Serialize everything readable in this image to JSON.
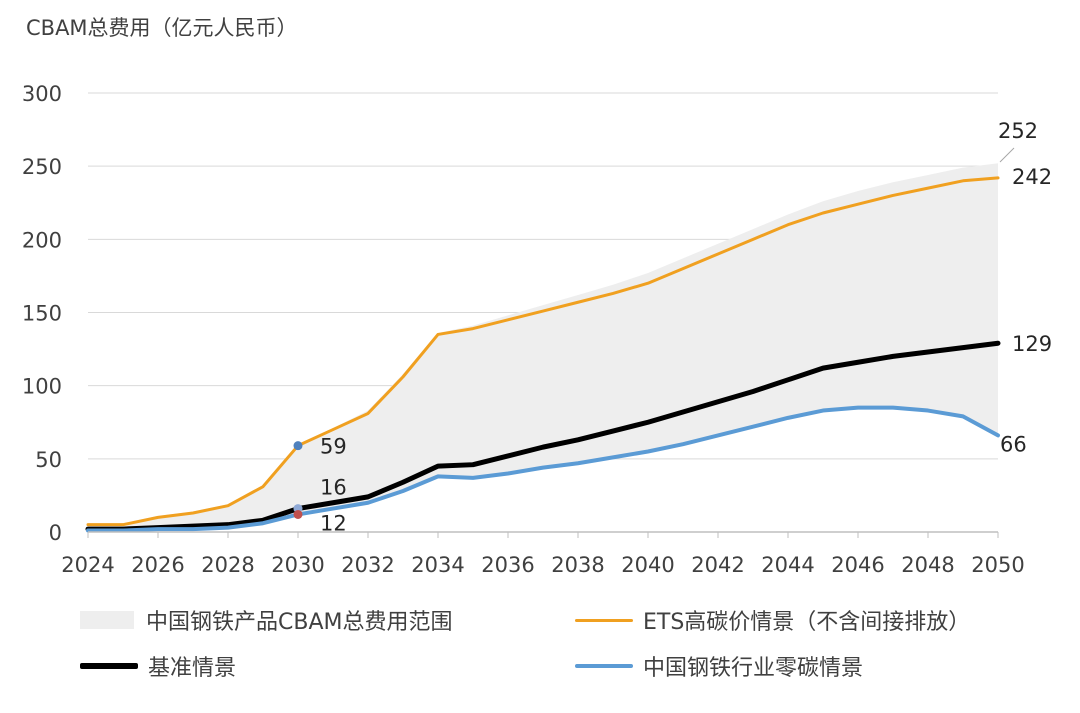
{
  "chart_data": {
    "type": "line",
    "title": "CBAM总费用（亿元人民币）",
    "xlabel": "",
    "ylabel": "CBAM总费用（亿元人民币）",
    "xlim": [
      2024,
      2050
    ],
    "ylim": [
      0,
      300
    ],
    "xticks": [
      2024,
      2026,
      2028,
      2030,
      2032,
      2034,
      2036,
      2038,
      2040,
      2042,
      2044,
      2046,
      2048,
      2050
    ],
    "yticks": [
      0,
      50,
      100,
      150,
      200,
      250,
      300
    ],
    "grid": true,
    "x": [
      2024,
      2025,
      2026,
      2027,
      2028,
      2029,
      2030,
      2031,
      2032,
      2033,
      2034,
      2035,
      2036,
      2037,
      2038,
      2039,
      2040,
      2041,
      2042,
      2043,
      2044,
      2045,
      2046,
      2047,
      2048,
      2049,
      2050
    ],
    "range": {
      "name": "中国钢铁产品CBAM总费用范围",
      "lower": [
        1,
        1,
        2,
        2,
        3,
        6,
        12,
        16,
        20,
        28,
        38,
        37,
        40,
        44,
        47,
        51,
        55,
        60,
        66,
        72,
        78,
        83,
        85,
        85,
        83,
        79,
        66
      ],
      "upper": [
        5,
        6,
        11,
        14,
        19,
        32,
        59,
        71,
        83,
        108,
        136,
        141,
        148,
        155,
        162,
        169,
        177,
        187,
        197,
        207,
        217,
        226,
        233,
        239,
        244,
        249,
        252
      ]
    },
    "series": [
      {
        "name": "ETS高碳价情景（不含间接排放）",
        "color": "#f0a020",
        "width": 3,
        "values": [
          5,
          5,
          10,
          13,
          18,
          31,
          59,
          70,
          81,
          106,
          135,
          139,
          145,
          151,
          157,
          163,
          170,
          180,
          190,
          200,
          210,
          218,
          224,
          230,
          235,
          240,
          242
        ]
      },
      {
        "name": "基准情景",
        "color": "#000000",
        "width": 5,
        "values": [
          2,
          2,
          3,
          4,
          5,
          8,
          16,
          20,
          24,
          34,
          45,
          46,
          52,
          58,
          63,
          69,
          75,
          82,
          89,
          96,
          104,
          112,
          116,
          120,
          123,
          126,
          129
        ]
      },
      {
        "name": "中国钢铁行业零碳情景",
        "color": "#5b9bd5",
        "width": 4,
        "values": [
          1,
          1,
          2,
          2,
          3,
          6,
          12,
          16,
          20,
          28,
          38,
          37,
          40,
          44,
          47,
          51,
          55,
          60,
          66,
          72,
          78,
          83,
          85,
          85,
          83,
          79,
          66
        ]
      }
    ],
    "annotations": [
      {
        "text": "59",
        "x": 2030,
        "y": 59,
        "marker_color": "#4f81bd",
        "marker": true
      },
      {
        "text": "16",
        "x": 2030,
        "y": 16,
        "marker_color": "#8fa9d6",
        "marker": true
      },
      {
        "text": "12",
        "x": 2030,
        "y": 12,
        "marker_color": "#c0504d",
        "marker": true
      },
      {
        "text": "252",
        "x": 2050,
        "y": 252,
        "marker": false,
        "leader": true
      },
      {
        "text": "242",
        "x": 2050,
        "y": 242,
        "marker": false
      },
      {
        "text": "129",
        "x": 2050,
        "y": 129,
        "marker": false
      },
      {
        "text": "66",
        "x": 2050,
        "y": 66,
        "marker": false
      }
    ],
    "legend_position": "bottom"
  },
  "legend": {
    "range_label": "中国钢铁产品CBAM总费用范围",
    "ets_label": "ETS高碳价情景（不含间接排放）",
    "baseline_label": "基准情景",
    "zero_label": "中国钢铁行业零碳情景",
    "range_color": "#eeeeee",
    "ets_color": "#f0a020",
    "baseline_color": "#000000",
    "zero_color": "#5b9bd5"
  }
}
